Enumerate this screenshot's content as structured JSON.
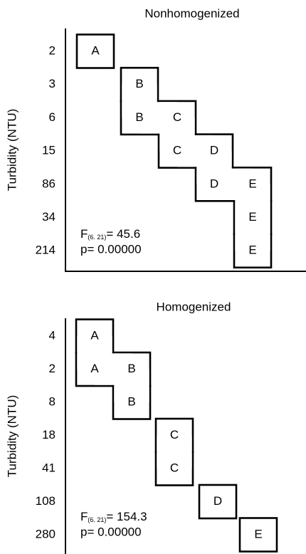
{
  "panels": [
    {
      "title": "Nonhomogenized",
      "y_label": "Turbidity (NTU)",
      "rows": [
        {
          "label": "2",
          "groups": [
            "A"
          ]
        },
        {
          "label": "3",
          "groups": [
            "B"
          ]
        },
        {
          "label": "6",
          "groups": [
            "B",
            "C"
          ]
        },
        {
          "label": "15",
          "groups": [
            "C",
            "D"
          ]
        },
        {
          "label": "86",
          "groups": [
            "D",
            "E"
          ]
        },
        {
          "label": "34",
          "groups": [
            "E"
          ]
        },
        {
          "label": "214",
          "groups": [
            "E"
          ]
        }
      ],
      "stat": {
        "f": "F",
        "f_sub": "(6. 21)",
        "f_value": "= 45.6",
        "p": "p= 0.00000"
      }
    },
    {
      "title": "Homogenized",
      "y_label": "Turbidity (NTU)",
      "rows": [
        {
          "label": "4",
          "groups": [
            "A"
          ]
        },
        {
          "label": "2",
          "groups": [
            "A",
            "B"
          ]
        },
        {
          "label": "8",
          "groups": [
            "B"
          ]
        },
        {
          "label": "18",
          "groups": [
            "C"
          ]
        },
        {
          "label": "41",
          "groups": [
            "C"
          ]
        },
        {
          "label": "108",
          "groups": [
            "D"
          ]
        },
        {
          "label": "280",
          "groups": [
            "E"
          ]
        }
      ],
      "stat": {
        "f": "F",
        "f_sub": "(6. 21)",
        "f_value": "= 154.3",
        "p": "p= 0.00000"
      }
    }
  ]
}
